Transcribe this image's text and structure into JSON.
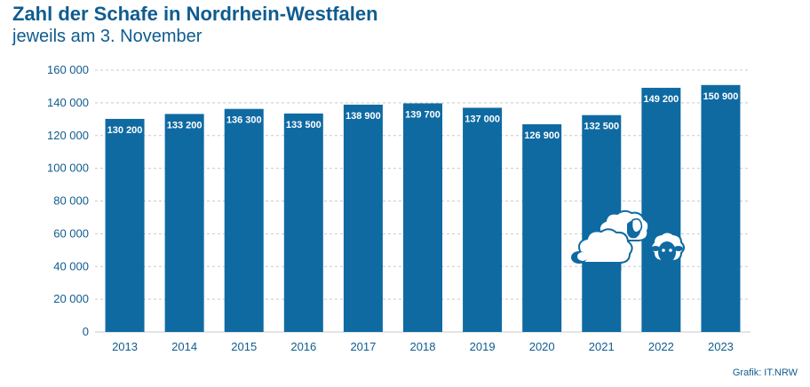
{
  "chart": {
    "title": "Zahl der Schafe in Nordrhein-Westfalen",
    "subtitle": "jeweils am 3. November",
    "source": "Grafik: IT.NRW"
  },
  "colors": {
    "bar": "#0f6aa2",
    "text": "#0f5c8f",
    "grid": "#c9c9c9",
    "label": "#ffffff"
  },
  "chart_data": {
    "type": "bar",
    "title": "Zahl der Schafe in Nordrhein-Westfalen",
    "subtitle": "jeweils am 3. November",
    "categories": [
      "2013",
      "2014",
      "2015",
      "2016",
      "2017",
      "2018",
      "2019",
      "2020",
      "2021",
      "2022",
      "2023"
    ],
    "values": [
      130200,
      133200,
      136300,
      133500,
      138900,
      139700,
      137000,
      126900,
      132500,
      149200,
      150900
    ],
    "value_labels": [
      "130 200",
      "133 200",
      "136 300",
      "133 500",
      "138 900",
      "139 700",
      "137 000",
      "126 900",
      "132 500",
      "149 200",
      "150 900"
    ],
    "ylim": [
      0,
      160000
    ],
    "yticks": [
      0,
      20000,
      40000,
      60000,
      80000,
      100000,
      120000,
      140000,
      160000
    ],
    "ytick_labels": [
      "0",
      "20 000",
      "40 000",
      "60 000",
      "80 000",
      "100 000",
      "120 000",
      "140 000",
      "160 000"
    ],
    "xlabel": "",
    "ylabel": "",
    "grid": true,
    "grid_style": "dashed",
    "legend": "none",
    "decoration": "sheep-illustration"
  }
}
